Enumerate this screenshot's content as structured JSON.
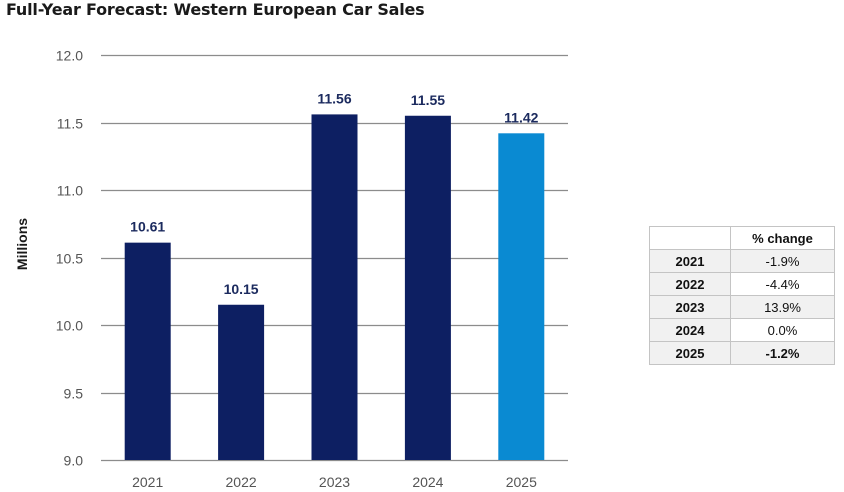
{
  "colors": {
    "bar_dark": "#0d1f62",
    "bar_forecast": "#0a8ad2",
    "grid": "#8c8c8c",
    "tick_text": "#555555",
    "label_text": "#1b2a5e"
  },
  "chart_data": {
    "type": "bar",
    "title": "Full-Year Forecast: Western European Car Sales",
    "ylabel": "Millions",
    "xlabel": "",
    "categories": [
      "2021",
      "2022",
      "2023",
      "2024",
      "2025"
    ],
    "values": [
      10.61,
      10.15,
      11.56,
      11.55,
      11.42
    ],
    "data_labels": [
      "10.61",
      "10.15",
      "11.56",
      "11.55",
      "11.42"
    ],
    "bar_colors": [
      "#0d1f62",
      "#0d1f62",
      "#0d1f62",
      "#0d1f62",
      "#0a8ad2"
    ],
    "ylim": [
      9.0,
      12.0
    ],
    "yticks": [
      9.0,
      9.5,
      10.0,
      10.5,
      11.0,
      11.5,
      12.0
    ],
    "ytick_labels": [
      "9.0",
      "9.5",
      "10.0",
      "10.5",
      "11.0",
      "11.5",
      "12.0"
    ],
    "grid": true,
    "legend": "none"
  },
  "table": {
    "header": [
      "",
      "% change"
    ],
    "rows": [
      {
        "year": "2021",
        "change": "-1.9%",
        "bold": false,
        "shaded": true
      },
      {
        "year": "2022",
        "change": "-4.4%",
        "bold": false,
        "shaded": false
      },
      {
        "year": "2023",
        "change": "13.9%",
        "bold": false,
        "shaded": true
      },
      {
        "year": "2024",
        "change": "0.0%",
        "bold": false,
        "shaded": false
      },
      {
        "year": "2025",
        "change": "-1.2%",
        "bold": true,
        "shaded": true
      }
    ]
  }
}
